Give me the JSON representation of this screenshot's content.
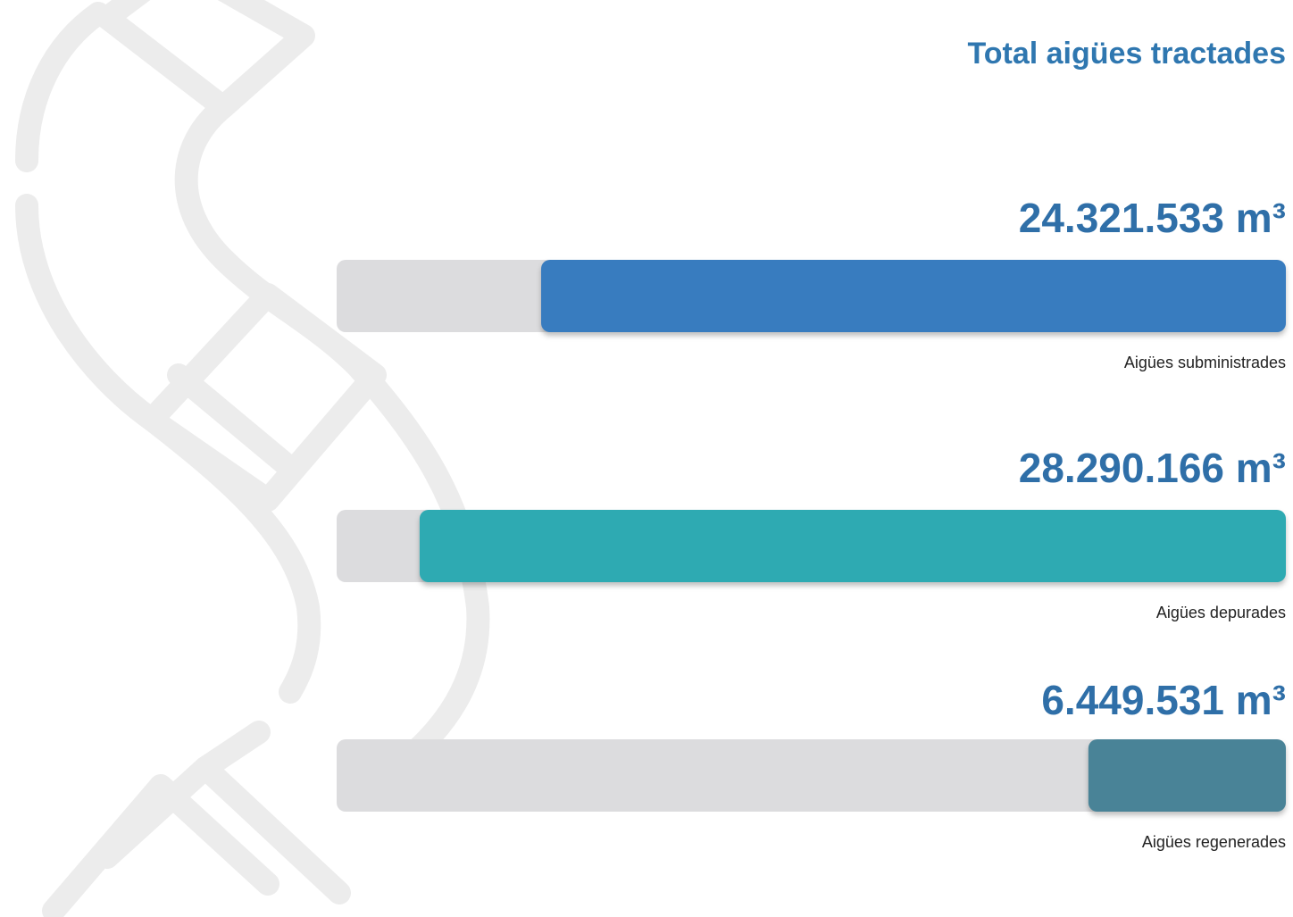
{
  "chart_data": {
    "type": "bar",
    "orientation": "horizontal",
    "title": "Total aigües tractades",
    "categories": [
      "Aigües subministrades",
      "Aigües depurades",
      "Aigües regenerades"
    ],
    "values": [
      24321533,
      28290166,
      6449531
    ],
    "value_labels": [
      "24.321.533 m³",
      "28.290.166 m³",
      "6.449.531 m³"
    ],
    "colors": [
      "#377bbf",
      "#2faab2",
      "#4a8397"
    ],
    "track_color": "#dcdcde",
    "xlim": [
      0,
      31000000
    ]
  }
}
